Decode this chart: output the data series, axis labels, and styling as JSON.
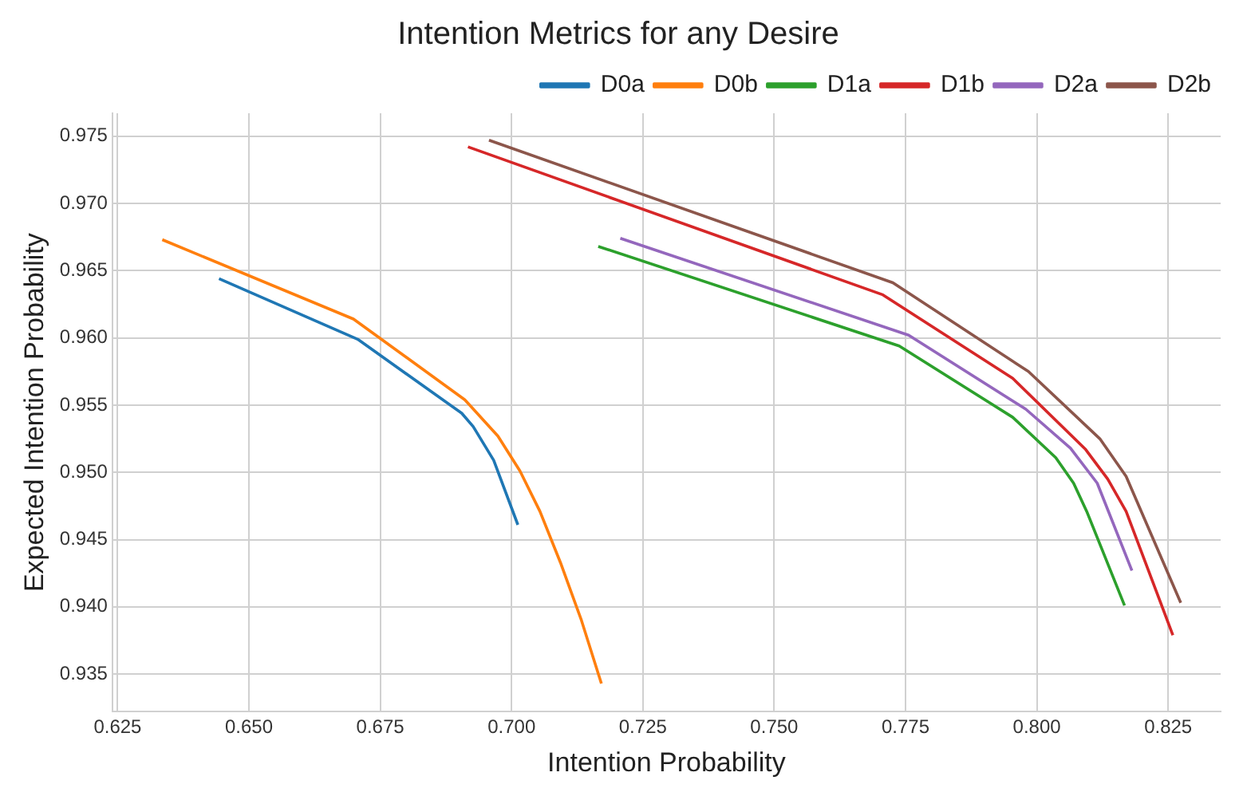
{
  "chart_data": {
    "type": "line",
    "title": "Intention Metrics for any Desire",
    "xlabel": "Intention Probability",
    "ylabel": "Expected Intention Probability",
    "xlim": [
      0.624,
      0.835
    ],
    "ylim": [
      0.9322,
      0.9767
    ],
    "xticks": [
      {
        "value": 0.625,
        "label": "0.625"
      },
      {
        "value": 0.65,
        "label": "0.650"
      },
      {
        "value": 0.675,
        "label": "0.675"
      },
      {
        "value": 0.7,
        "label": "0.700"
      },
      {
        "value": 0.725,
        "label": "0.725"
      },
      {
        "value": 0.75,
        "label": "0.750"
      },
      {
        "value": 0.775,
        "label": "0.775"
      },
      {
        "value": 0.8,
        "label": "0.800"
      },
      {
        "value": 0.825,
        "label": "0.825"
      }
    ],
    "yticks": [
      {
        "value": 0.935,
        "label": "0.935"
      },
      {
        "value": 0.94,
        "label": "0.940"
      },
      {
        "value": 0.945,
        "label": "0.945"
      },
      {
        "value": 0.95,
        "label": "0.950"
      },
      {
        "value": 0.955,
        "label": "0.955"
      },
      {
        "value": 0.96,
        "label": "0.960"
      },
      {
        "value": 0.965,
        "label": "0.965"
      },
      {
        "value": 0.97,
        "label": "0.970"
      },
      {
        "value": 0.975,
        "label": "0.975"
      }
    ],
    "grid": true,
    "legend": "top right",
    "series": [
      {
        "name": "D0a",
        "color": "#1f77b4",
        "x": [
          0.6443,
          0.6707,
          0.6905,
          0.6927,
          0.6966,
          0.7012
        ],
        "values": [
          0.9644,
          0.9599,
          0.9544,
          0.9534,
          0.9509,
          0.9461
        ]
      },
      {
        "name": "D0b",
        "color": "#ff7f0e",
        "x": [
          0.6335,
          0.6699,
          0.6911,
          0.6974,
          0.7016,
          0.7054,
          0.7093,
          0.7133,
          0.7171
        ],
        "values": [
          0.9673,
          0.9614,
          0.9554,
          0.9527,
          0.9501,
          0.9471,
          0.9433,
          0.939,
          0.9343
        ]
      },
      {
        "name": "D1a",
        "color": "#2ca02c",
        "x": [
          0.7165,
          0.7738,
          0.7954,
          0.8036,
          0.807,
          0.8095,
          0.8167
        ],
        "values": [
          0.9668,
          0.9594,
          0.9541,
          0.9511,
          0.9492,
          0.9471,
          0.9401
        ]
      },
      {
        "name": "D1b",
        "color": "#d62728",
        "x": [
          0.6917,
          0.7707,
          0.7954,
          0.8093,
          0.8135,
          0.817,
          0.8259
        ],
        "values": [
          0.9742,
          0.9632,
          0.957,
          0.9517,
          0.9495,
          0.9471,
          0.9379
        ]
      },
      {
        "name": "D2a",
        "color": "#9467bd",
        "x": [
          0.7207,
          0.7756,
          0.7979,
          0.8064,
          0.8115,
          0.8181
        ],
        "values": [
          0.9674,
          0.9602,
          0.9547,
          0.9518,
          0.9492,
          0.9427
        ]
      },
      {
        "name": "D2b",
        "color": "#8c564b",
        "x": [
          0.6957,
          0.7726,
          0.7984,
          0.812,
          0.817,
          0.8274
        ],
        "values": [
          0.9747,
          0.9641,
          0.9575,
          0.9525,
          0.9497,
          0.9403
        ]
      }
    ]
  }
}
